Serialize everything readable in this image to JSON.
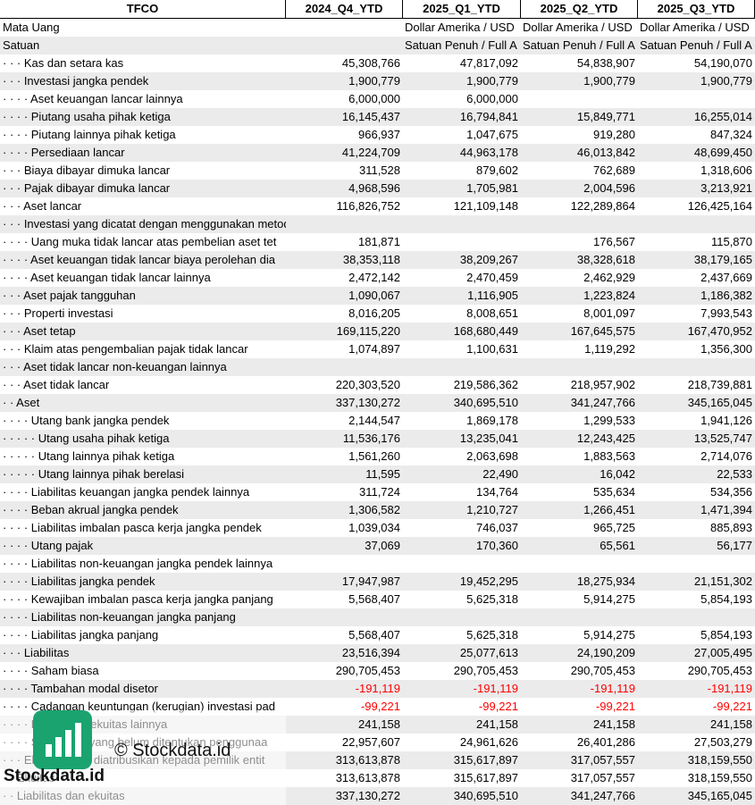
{
  "table": {
    "columns": [
      "TFCO",
      "2024_Q4_YTD",
      "2025_Q1_YTD",
      "2025_Q2_YTD",
      "2025_Q3_YTD"
    ],
    "rows": [
      {
        "label": "Mata Uang",
        "values": [
          null,
          "Dollar Amerika / USD",
          "Dollar Amerika / USD",
          "Dollar Amerika / USD"
        ]
      },
      {
        "label": "Satuan",
        "values": [
          null,
          "Satuan Penuh / Full A",
          "Satuan Penuh / Full A",
          "Satuan Penuh / Full A"
        ]
      },
      {
        "label": "· · · Kas dan setara kas",
        "values": [
          "45,308,766",
          "47,817,092",
          "54,838,907",
          "54,190,070"
        ]
      },
      {
        "label": "· · · Investasi jangka pendek",
        "values": [
          "1,900,779",
          "1,900,779",
          "1,900,779",
          "1,900,779"
        ]
      },
      {
        "label": "· · · · Aset keuangan lancar lainnya",
        "values": [
          "6,000,000",
          "6,000,000",
          null,
          null
        ]
      },
      {
        "label": "· · · · Piutang usaha pihak ketiga",
        "values": [
          "16,145,437",
          "16,794,841",
          "15,849,771",
          "16,255,014"
        ]
      },
      {
        "label": "· · · · Piutang lainnya pihak ketiga",
        "values": [
          "966,937",
          "1,047,675",
          "919,280",
          "847,324"
        ]
      },
      {
        "label": "· · · · Persediaan lancar",
        "values": [
          "41,224,709",
          "44,963,178",
          "46,013,842",
          "48,699,450"
        ]
      },
      {
        "label": "· · · Biaya dibayar dimuka lancar",
        "values": [
          "311,528",
          "879,602",
          "762,689",
          "1,318,606"
        ]
      },
      {
        "label": "· · · Pajak dibayar dimuka lancar",
        "values": [
          "4,968,596",
          "1,705,981",
          "2,004,596",
          "3,213,921"
        ]
      },
      {
        "label": "· · · Aset lancar",
        "values": [
          "116,826,752",
          "121,109,148",
          "122,289,864",
          "126,425,164"
        ]
      },
      {
        "label": "· · · Investasi yang dicatat dengan menggunakan metode ekuitas",
        "values": [
          null,
          null,
          null,
          null
        ]
      },
      {
        "label": "· · · · Uang muka tidak lancar atas pembelian aset tet",
        "values": [
          "181,871",
          null,
          "176,567",
          "115,870"
        ]
      },
      {
        "label": "· · · · Aset keuangan tidak lancar biaya perolehan dia",
        "values": [
          "38,353,118",
          "38,209,267",
          "38,328,618",
          "38,179,165"
        ]
      },
      {
        "label": "· · · · Aset keuangan tidak lancar lainnya",
        "values": [
          "2,472,142",
          "2,470,459",
          "2,462,929",
          "2,437,669"
        ]
      },
      {
        "label": "· · · Aset pajak tangguhan",
        "values": [
          "1,090,067",
          "1,116,905",
          "1,223,824",
          "1,186,382"
        ]
      },
      {
        "label": "· · · Properti investasi",
        "values": [
          "8,016,205",
          "8,008,651",
          "8,001,097",
          "7,993,543"
        ]
      },
      {
        "label": "· · · Aset tetap",
        "values": [
          "169,115,220",
          "168,680,449",
          "167,645,575",
          "167,470,952"
        ]
      },
      {
        "label": "· · · Klaim atas pengembalian pajak tidak lancar",
        "values": [
          "1,074,897",
          "1,100,631",
          "1,119,292",
          "1,356,300"
        ]
      },
      {
        "label": "· · · Aset tidak lancar non-keuangan lainnya",
        "values": [
          null,
          null,
          null,
          null
        ]
      },
      {
        "label": "· · · Aset tidak lancar",
        "values": [
          "220,303,520",
          "219,586,362",
          "218,957,902",
          "218,739,881"
        ]
      },
      {
        "label": "· · Aset",
        "values": [
          "337,130,272",
          "340,695,510",
          "341,247,766",
          "345,165,045"
        ]
      },
      {
        "label": "· · · · Utang bank jangka pendek",
        "values": [
          "2,144,547",
          "1,869,178",
          "1,299,533",
          "1,941,126"
        ]
      },
      {
        "label": "· · · · · Utang usaha pihak ketiga",
        "values": [
          "11,536,176",
          "13,235,041",
          "12,243,425",
          "13,525,747"
        ]
      },
      {
        "label": "· · · · · Utang lainnya pihak ketiga",
        "values": [
          "1,561,260",
          "2,063,698",
          "1,883,563",
          "2,714,076"
        ]
      },
      {
        "label": "· · · · · Utang lainnya pihak berelasi",
        "values": [
          "11,595",
          "22,490",
          "16,042",
          "22,533"
        ]
      },
      {
        "label": "· · · · Liabilitas keuangan jangka pendek lainnya",
        "values": [
          "311,724",
          "134,764",
          "535,634",
          "534,356"
        ]
      },
      {
        "label": "· · · · Beban akrual jangka pendek",
        "values": [
          "1,306,582",
          "1,210,727",
          "1,266,451",
          "1,471,394"
        ]
      },
      {
        "label": "· · · · Liabilitas imbalan pasca kerja jangka pendek",
        "values": [
          "1,039,034",
          "746,037",
          "965,725",
          "885,893"
        ]
      },
      {
        "label": "· · · · Utang pajak",
        "values": [
          "37,069",
          "170,360",
          "65,561",
          "56,177"
        ]
      },
      {
        "label": "· · · · Liabilitas non-keuangan jangka pendek lainnya",
        "values": [
          null,
          null,
          null,
          null
        ]
      },
      {
        "label": "· · · · Liabilitas jangka pendek",
        "values": [
          "17,947,987",
          "19,452,295",
          "18,275,934",
          "21,151,302"
        ]
      },
      {
        "label": "· · · · Kewajiban imbalan pasca kerja jangka panjang",
        "values": [
          "5,568,407",
          "5,625,318",
          "5,914,275",
          "5,854,193"
        ]
      },
      {
        "label": "· · · · Liabilitas non-keuangan jangka panjang",
        "values": [
          null,
          null,
          null,
          null
        ]
      },
      {
        "label": "· · · · Liabilitas jangka panjang",
        "values": [
          "5,568,407",
          "5,625,318",
          "5,914,275",
          "5,854,193"
        ]
      },
      {
        "label": "· · · Liabilitas",
        "values": [
          "23,516,394",
          "25,077,613",
          "24,190,209",
          "27,005,495"
        ]
      },
      {
        "label": "· · · · Saham biasa",
        "values": [
          "290,705,453",
          "290,705,453",
          "290,705,453",
          "290,705,453"
        ]
      },
      {
        "label": "· · · · Tambahan modal disetor",
        "values": [
          "-191,119",
          "-191,119",
          "-191,119",
          "-191,119"
        ]
      },
      {
        "label": "· · · · Cadangan keuntungan (kerugian) investasi pad",
        "values": [
          "-99,221",
          "-99,221",
          "-99,221",
          "-99,221"
        ]
      },
      {
        "label": "· · · · Komponen ekuitas lainnya",
        "values": [
          "241,158",
          "241,158",
          "241,158",
          "241,158"
        ]
      },
      {
        "label": "· · · · Saldo laba yang belum ditentukan penggunaa",
        "values": [
          "22,957,607",
          "24,961,626",
          "26,401,286",
          "27,503,279"
        ]
      },
      {
        "label": "· · · Ekuitas yang diatribusikan kepada pemilik entit",
        "values": [
          "313,613,878",
          "315,617,897",
          "317,057,557",
          "318,159,550"
        ]
      },
      {
        "label": "· · Ekuitas",
        "values": [
          "313,613,878",
          "315,617,897",
          "317,057,557",
          "318,159,550"
        ]
      },
      {
        "label": "· · Liabilitas dan ekuitas",
        "values": [
          "337,130,272",
          "340,695,510",
          "341,247,766",
          "345,165,045"
        ]
      }
    ]
  },
  "watermark": {
    "brand": "Stockdata.id",
    "copyright": "© Stockdata.id"
  }
}
